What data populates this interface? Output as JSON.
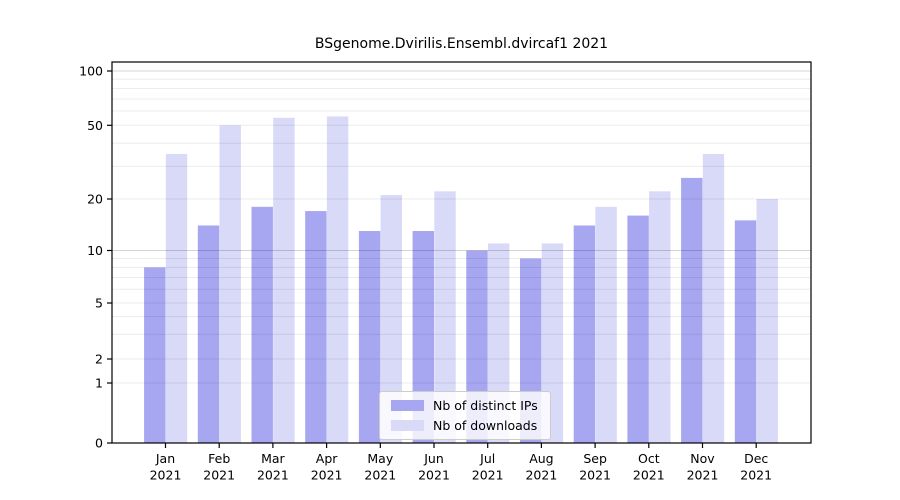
{
  "chart_data": {
    "type": "bar",
    "title": "BSgenome.Dvirilis.Ensembl.dvircaf1 2021",
    "categories": [
      "Jan",
      "Feb",
      "Mar",
      "Apr",
      "May",
      "Jun",
      "Jul",
      "Aug",
      "Sep",
      "Oct",
      "Nov",
      "Dec"
    ],
    "year_label": "2021",
    "series": [
      {
        "name": "Nb of distinct IPs",
        "color": "#a6a6f1",
        "values": [
          8,
          14,
          18,
          17,
          13,
          13,
          10,
          9,
          14,
          16,
          26,
          15
        ]
      },
      {
        "name": "Nb of downloads",
        "color": "#d9d9f8",
        "values": [
          35,
          50,
          55,
          56,
          21,
          22,
          11,
          11,
          18,
          22,
          35,
          20
        ]
      }
    ],
    "yticks": [
      0,
      1,
      2,
      5,
      10,
      20,
      50,
      100
    ],
    "yscale": "pseudo-log",
    "ylim": [
      0,
      100
    ],
    "grid": "horizontal",
    "legend_position": "bottom-center-inside",
    "colors": {
      "axis": "#000000",
      "grid_minor": "rgba(0,0,0,0.075)",
      "grid_major": "rgba(0,0,0,0.17)",
      "background": "#ffffff"
    }
  }
}
